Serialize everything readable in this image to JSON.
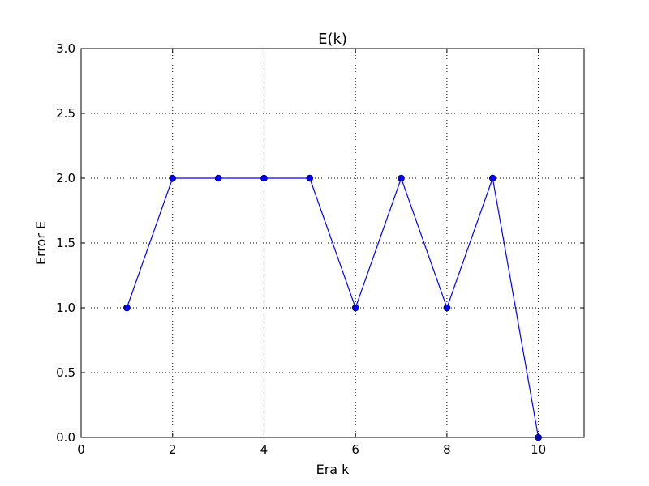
{
  "chart_data": {
    "type": "line",
    "title": "E(k)",
    "xlabel": "Era  k",
    "ylabel": "Error  E",
    "xlim": [
      0,
      11
    ],
    "ylim": [
      0.0,
      3.0
    ],
    "xticks": [
      0,
      2,
      4,
      6,
      8,
      10
    ],
    "yticks": [
      0.0,
      0.5,
      1.0,
      1.5,
      2.0,
      2.5,
      3.0
    ],
    "xtick_labels": [
      "0",
      "2",
      "4",
      "6",
      "8",
      "10"
    ],
    "ytick_labels": [
      "0.0",
      "0.5",
      "1.0",
      "1.5",
      "2.0",
      "2.5",
      "3.0"
    ],
    "grid": true,
    "series": [
      {
        "color": "#0000ff",
        "marker": "circle",
        "x": [
          1,
          2,
          3,
          4,
          5,
          6,
          7,
          8,
          9,
          10
        ],
        "y": [
          1,
          2,
          2,
          2,
          2,
          1,
          2,
          1,
          2,
          0
        ]
      }
    ]
  }
}
